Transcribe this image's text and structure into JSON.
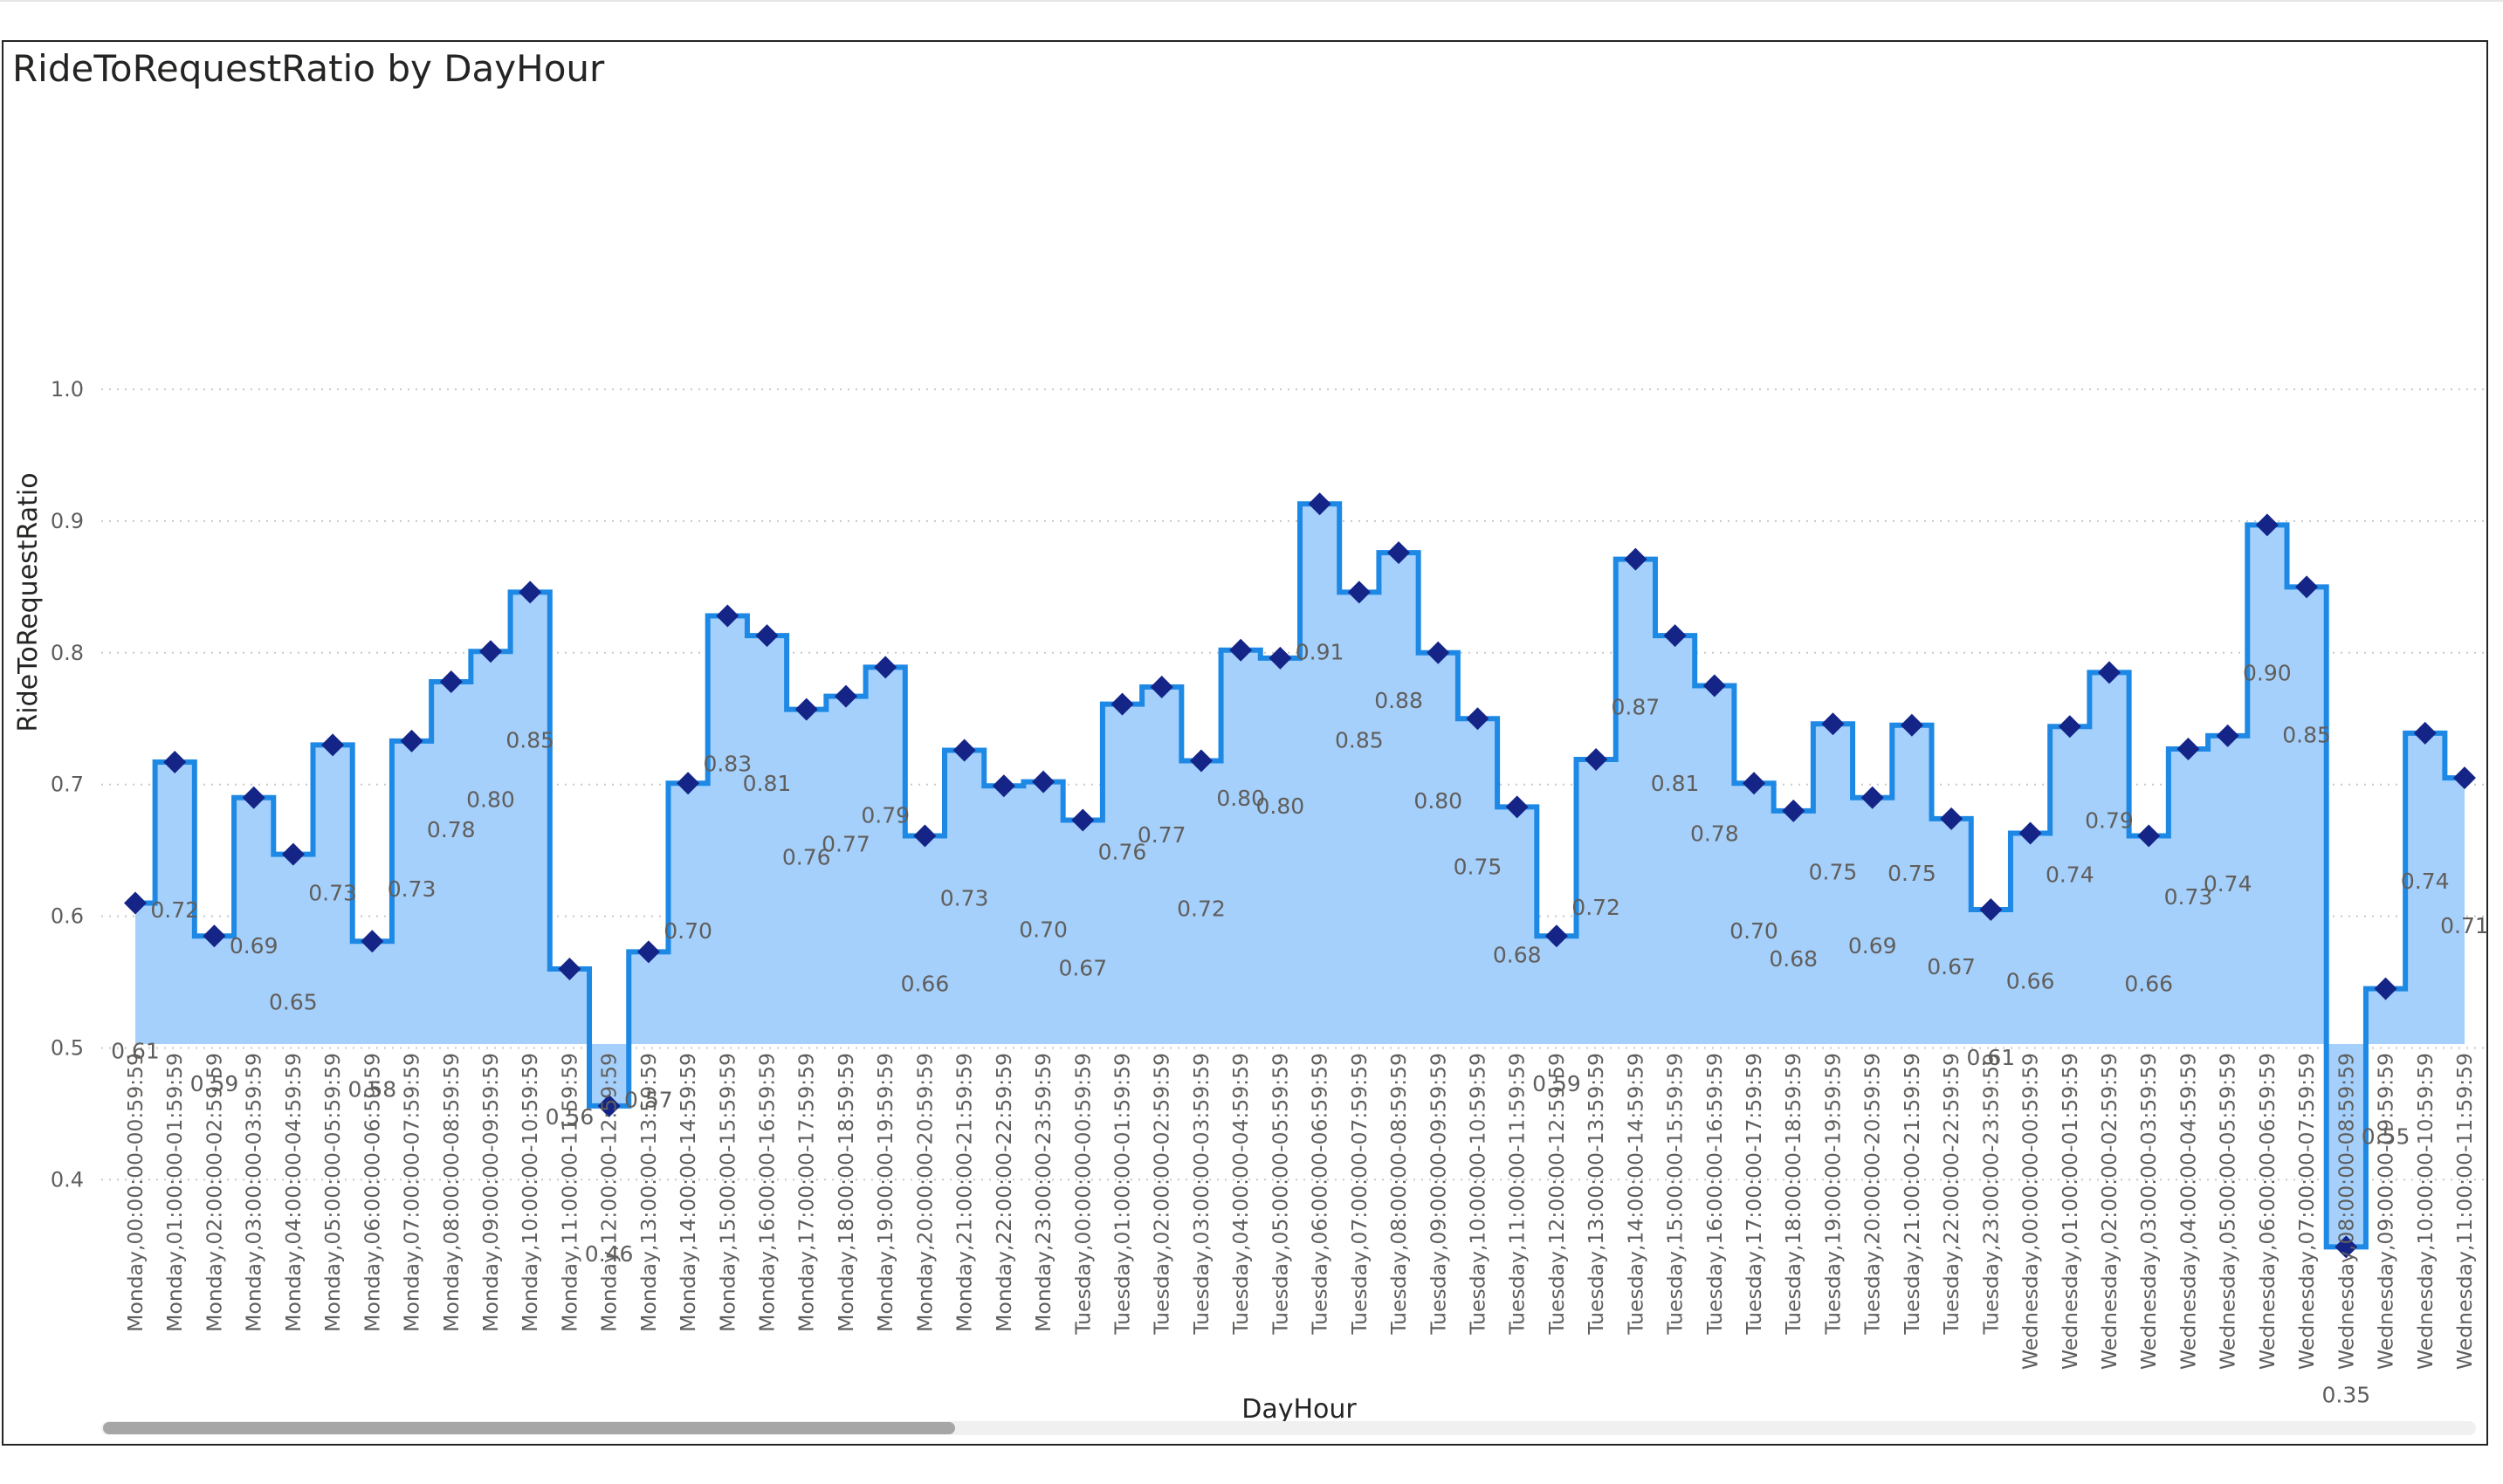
{
  "chart_data": {
    "type": "area",
    "title": "RideToRequestRatio by DayHour",
    "xlabel": "DayHour",
    "ylabel": "RideToRequestRatio",
    "ylim": [
      0.3,
      1.0
    ],
    "yticks": [
      "0.4",
      "0.5",
      "0.6",
      "0.7",
      "0.8",
      "0.9",
      "1.0"
    ],
    "grid": true,
    "step": true,
    "colors": {
      "area": "#a5d0fc",
      "line": "#1e88e5",
      "marker": "#142487",
      "grid": "#c8c8c8",
      "text": "#605e5c"
    },
    "categories": [
      "Monday,00:00:00-00:59:59",
      "Monday,01:00:00-01:59:59",
      "Monday,02:00:00-02:59:59",
      "Monday,03:00:00-03:59:59",
      "Monday,04:00:00-04:59:59",
      "Monday,05:00:00-05:59:59",
      "Monday,06:00:00-06:59:59",
      "Monday,07:00:00-07:59:59",
      "Monday,08:00:00-08:59:59",
      "Monday,09:00:00-09:59:59",
      "Monday,10:00:00-10:59:59",
      "Monday,11:00:00-11:59:59",
      "Monday,12:00:00-12:59:59",
      "Monday,13:00:00-13:59:59",
      "Monday,14:00:00-14:59:59",
      "Monday,15:00:00-15:59:59",
      "Monday,16:00:00-16:59:59",
      "Monday,17:00:00-17:59:59",
      "Monday,18:00:00-18:59:59",
      "Monday,19:00:00-19:59:59",
      "Monday,20:00:00-20:59:59",
      "Monday,21:00:00-21:59:59",
      "Monday,22:00:00-22:59:59",
      "Monday,23:00:00-23:59:59",
      "Tuesday,00:00:00-00:59:59",
      "Tuesday,01:00:00-01:59:59",
      "Tuesday,02:00:00-02:59:59",
      "Tuesday,03:00:00-03:59:59",
      "Tuesday,04:00:00-04:59:59",
      "Tuesday,05:00:00-05:59:59",
      "Tuesday,06:00:00-06:59:59",
      "Tuesday,07:00:00-07:59:59",
      "Tuesday,08:00:00-08:59:59",
      "Tuesday,09:00:00-09:59:59",
      "Tuesday,10:00:00-10:59:59",
      "Tuesday,11:00:00-11:59:59",
      "Tuesday,12:00:00-12:59:59",
      "Tuesday,13:00:00-13:59:59",
      "Tuesday,14:00:00-14:59:59",
      "Tuesday,15:00:00-15:59:59",
      "Tuesday,16:00:00-16:59:59",
      "Tuesday,17:00:00-17:59:59",
      "Tuesday,18:00:00-18:59:59",
      "Tuesday,19:00:00-19:59:59",
      "Tuesday,20:00:00-20:59:59",
      "Tuesday,21:00:00-21:59:59",
      "Tuesday,22:00:00-22:59:59",
      "Tuesday,23:00:00-23:59:59",
      "Wednesday,00:00:00-00:59:59",
      "Wednesday,01:00:00-01:59:59",
      "Wednesday,02:00:00-02:59:59",
      "Wednesday,03:00:00-03:59:59",
      "Wednesday,04:00:00-04:59:59",
      "Wednesday,05:00:00-05:59:59",
      "Wednesday,06:00:00-06:59:59",
      "Wednesday,07:00:00-07:59:59",
      "Wednesday,08:00:00-08:59:59",
      "Wednesday,09:00:00-09:59:59",
      "Wednesday,10:00:00-10:59:59",
      "Wednesday,11:00:00-11:59:59"
    ],
    "values": [
      0.61,
      0.717,
      0.585,
      0.69,
      0.647,
      0.73,
      0.581,
      0.733,
      0.778,
      0.801,
      0.846,
      0.56,
      0.456,
      0.573,
      0.701,
      0.828,
      0.813,
      0.757,
      0.767,
      0.789,
      0.661,
      0.726,
      0.699,
      0.702,
      0.673,
      0.761,
      0.774,
      0.718,
      0.802,
      0.796,
      0.913,
      0.846,
      0.876,
      0.8,
      0.75,
      0.683,
      0.585,
      0.719,
      0.871,
      0.813,
      0.775,
      0.701,
      0.68,
      0.746,
      0.69,
      0.745,
      0.674,
      0.605,
      0.663,
      0.744,
      0.785,
      0.661,
      0.727,
      0.737,
      0.897,
      0.85,
      0.349,
      0.545,
      0.739,
      0.705
    ],
    "data_labels": [
      "0.61",
      "0.72",
      "0.59",
      "0.69",
      "0.65",
      "0.73",
      "0.58",
      "0.73",
      "0.78",
      "0.80",
      "0.85",
      "0.56",
      "0.46",
      "0.57",
      "0.70",
      "0.83",
      "0.81",
      "0.76",
      "0.77",
      "0.79",
      "0.66",
      "0.73",
      "",
      "0.70",
      "0.67",
      "0.76",
      "0.77",
      "0.72",
      "0.80",
      "0.80",
      "0.91",
      "0.85",
      "0.88",
      "0.80",
      "0.75",
      "0.68",
      "0.59",
      "0.72",
      "0.87",
      "0.81",
      "0.78",
      "0.70",
      "0.68",
      "0.75",
      "0.69",
      "0.75",
      "0.67",
      "0.61",
      "0.66",
      "0.74",
      "0.79",
      "0.66",
      "0.73",
      "0.74",
      "0.90",
      "0.85",
      "0.35",
      "0.55",
      "0.74",
      "0.71"
    ]
  }
}
